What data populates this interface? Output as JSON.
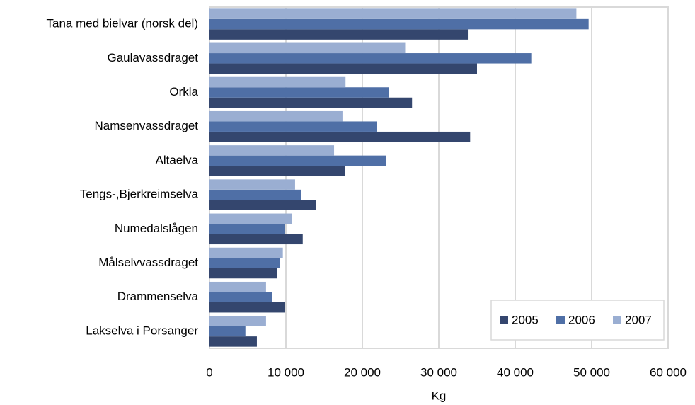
{
  "chart_data": {
    "type": "hbar",
    "categories": [
      "Tana med bielvar (norsk del)",
      "Gaulavassdraget",
      "Orkla",
      "Namsenvassdraget",
      "Altaelva",
      "Tengs-,Bjerkreimselva",
      "Numedalslågen",
      "Målselvvassdraget",
      "Drammenselva",
      "Lakselva i Porsanger"
    ],
    "series": [
      {
        "name": "2005",
        "color": "#34466e",
        "values": [
          33800,
          35000,
          26500,
          34100,
          17700,
          13900,
          12200,
          8800,
          9900,
          6200
        ]
      },
      {
        "name": "2006",
        "color": "#4f6fa6",
        "values": [
          49600,
          42100,
          23500,
          21900,
          23100,
          12000,
          9900,
          9200,
          8200,
          4700
        ]
      },
      {
        "name": "2007",
        "color": "#9aaed2",
        "values": [
          48000,
          25600,
          17800,
          17400,
          16300,
          11200,
          10800,
          9600,
          7400,
          7400
        ]
      }
    ],
    "xlabel": "Kg",
    "xlim": [
      0,
      60000
    ],
    "xticks": [
      0,
      {
        "value": 10000,
        "label": "10 000"
      },
      {
        "value": 20000,
        "label": "20 000"
      },
      {
        "value": 30000,
        "label": "30 000"
      },
      {
        "value": 40000,
        "label": "40 000"
      },
      {
        "value": 50000,
        "label": "50 000"
      },
      {
        "value": 60000,
        "label": "60 000"
      }
    ],
    "grid": true,
    "legend": "lower right"
  }
}
